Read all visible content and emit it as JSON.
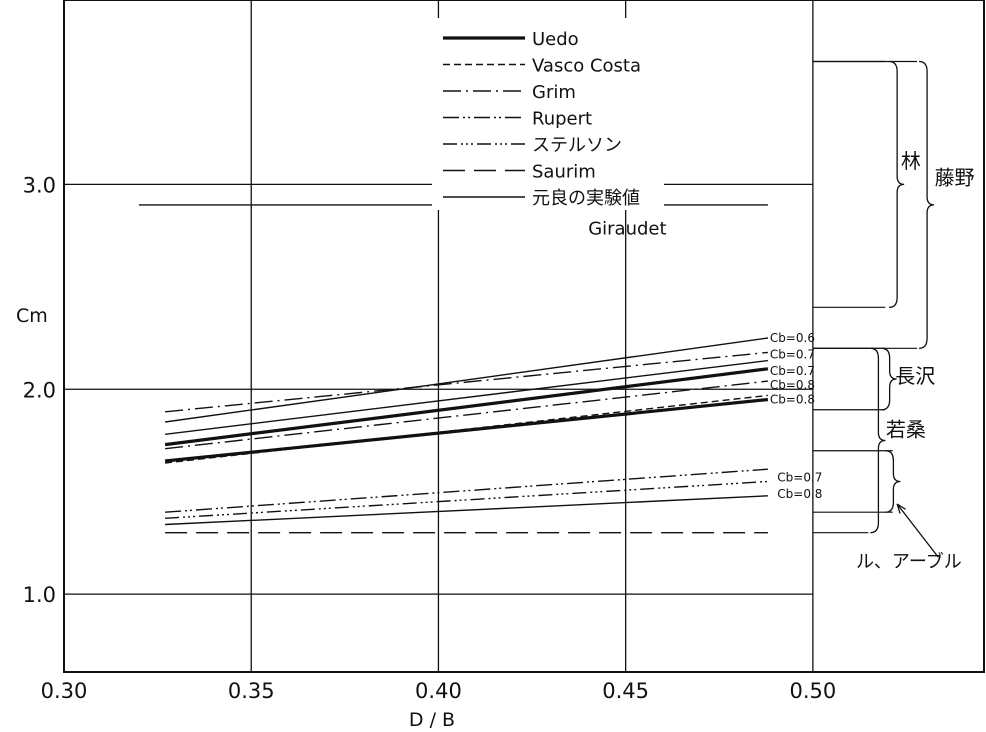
{
  "chart_data": {
    "type": "line",
    "xlabel": "D / B",
    "ylabel": "Cm",
    "xlim": [
      0.3,
      0.5457
    ],
    "ylim": [
      0.62,
      3.9
    ],
    "xticks": [
      "0.30",
      "0.35",
      "0.40",
      "0.45",
      "0.50"
    ],
    "yticks": [
      "1.0",
      "2.0",
      "3.0"
    ],
    "grid": true,
    "legend_position": "top-center",
    "legend": [
      {
        "label": "Uedo",
        "style": "thick-solid"
      },
      {
        "label": "Vasco Costa",
        "style": "dashed"
      },
      {
        "label": "Grim",
        "style": "dash-dot"
      },
      {
        "label": "Rupert",
        "style": "dash-dot-dot"
      },
      {
        "label": "ステルソン",
        "style": "dash-dot-dot-dot"
      },
      {
        "label": "Saurim",
        "style": "long-dash"
      },
      {
        "label": "元良の実験値",
        "style": "solid"
      }
    ],
    "series": [
      {
        "legend": "Uedo",
        "style": "thick-solid",
        "x": [
          0.327,
          0.488
        ],
        "y": [
          1.73,
          2.1
        ]
      },
      {
        "legend": "Uedo",
        "style": "thick-solid",
        "x": [
          0.327,
          0.488
        ],
        "y": [
          1.65,
          1.95
        ]
      },
      {
        "legend": "Vasco Costa",
        "style": "dashed",
        "x": [
          0.327,
          0.488
        ],
        "y": [
          1.64,
          1.97
        ]
      },
      {
        "legend": "Grim",
        "style": "dash-dot",
        "x": [
          0.327,
          0.488
        ],
        "y": [
          1.89,
          2.18
        ]
      },
      {
        "legend": "Grim",
        "style": "dash-dot",
        "x": [
          0.327,
          0.488
        ],
        "y": [
          1.71,
          2.04
        ]
      },
      {
        "legend": "元良の実験値",
        "style": "solid",
        "x": [
          0.327,
          0.488
        ],
        "y": [
          1.84,
          2.25
        ]
      },
      {
        "legend": "元良の実験値",
        "style": "solid",
        "x": [
          0.327,
          0.488
        ],
        "y": [
          1.78,
          2.14
        ]
      },
      {
        "legend": "Rupert",
        "style": "dash-dot-dot",
        "x": [
          0.327,
          0.488
        ],
        "y": [
          1.4,
          1.61
        ]
      },
      {
        "legend": "ステルソン",
        "style": "dash-dot-dot-dot",
        "x": [
          0.327,
          0.488
        ],
        "y": [
          1.37,
          1.55
        ]
      },
      {
        "legend": "元良の実験値",
        "style": "solid",
        "x": [
          0.327,
          0.488
        ],
        "y": [
          1.34,
          1.48
        ]
      },
      {
        "legend": "Saurim",
        "style": "long-dash",
        "x": [
          0.327,
          0.488
        ],
        "y": [
          1.3,
          1.3
        ]
      },
      {
        "legend": "Giraudet",
        "style": "solid",
        "x": [
          0.32,
          0.488
        ],
        "y": [
          2.9,
          2.9
        ]
      }
    ],
    "annotations": [
      {
        "text": "Giraudet",
        "x": 0.44,
        "y": 2.79
      },
      {
        "text": "Cb=0.6",
        "x": 0.4885,
        "y": 2.25
      },
      {
        "text": "Cb=0.7",
        "x": 0.4885,
        "y": 2.17
      },
      {
        "text": "Cb=0.7",
        "x": 0.4885,
        "y": 2.09
      },
      {
        "text": "Cb=0.8",
        "x": 0.4885,
        "y": 2.02
      },
      {
        "text": "Cb=0.8",
        "x": 0.4885,
        "y": 1.95
      },
      {
        "text": "Cb=0.7",
        "x": 0.4905,
        "y": 1.57
      },
      {
        "text": "Cb=0.8",
        "x": 0.4905,
        "y": 1.49
      }
    ],
    "brackets": [
      {
        "label": "林",
        "y_range": [
          2.4,
          3.6
        ]
      },
      {
        "label": "藤野",
        "y_range": [
          2.2,
          3.6
        ]
      },
      {
        "label": "長沢",
        "y_range": [
          1.9,
          2.2
        ]
      },
      {
        "label": "若桑",
        "y_range": [
          1.3,
          2.2
        ]
      },
      {
        "label": "ル、アーブル",
        "y_range": [
          1.4,
          1.7
        ]
      }
    ]
  }
}
